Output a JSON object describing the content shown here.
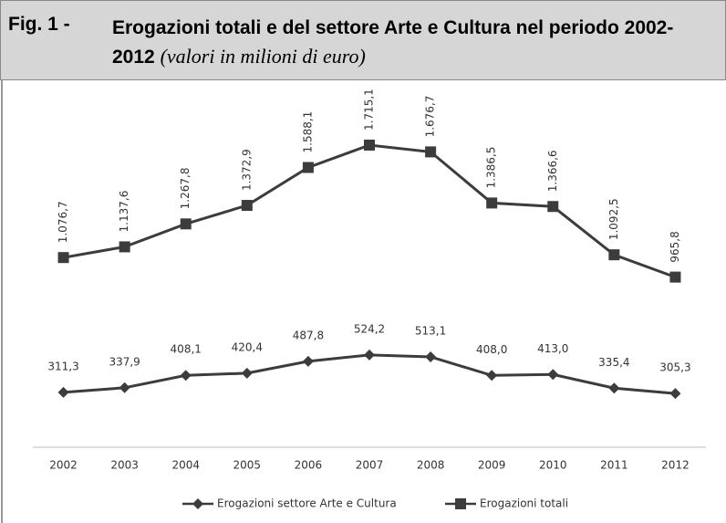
{
  "chart_data": {
    "type": "line",
    "figure_label": "Fig. 1 -",
    "title": "Erogazioni totali e del settore Arte e Cultura nel periodo 2002-2012",
    "subtitle": "(valori in milioni di euro)",
    "categories": [
      "2002",
      "2003",
      "2004",
      "2005",
      "2006",
      "2007",
      "2008",
      "2009",
      "2010",
      "2011",
      "2012"
    ],
    "series": [
      {
        "name": "Erogazioni settore Arte e Cultura",
        "color": "#3c3c3c",
        "marker": "diamond",
        "values": [
          311.3,
          337.9,
          408.1,
          420.4,
          487.8,
          524.2,
          513.1,
          408.0,
          413.0,
          335.4,
          305.3
        ],
        "value_labels": [
          "311,3",
          "337,9",
          "408,1",
          "420,4",
          "487,8",
          "524,2",
          "513,1",
          "408,0",
          "413,0",
          "335,4",
          "305,3"
        ]
      },
      {
        "name": "Erogazioni totali",
        "color": "#3c3c3c",
        "marker": "square",
        "values": [
          1076.7,
          1137.6,
          1267.8,
          1372.9,
          1588.1,
          1715.1,
          1676.7,
          1386.5,
          1366.6,
          1092.5,
          965.8
        ],
        "value_labels": [
          "1.076,7",
          "1.137,6",
          "1.267,8",
          "1.372,9",
          "1.588,1",
          "1.715,1",
          "1.676,7",
          "1.386,5",
          "1.366,6",
          "1.092,5",
          "965,8"
        ]
      }
    ],
    "ylim": [
      0,
      2000
    ],
    "legend": "bottom"
  }
}
